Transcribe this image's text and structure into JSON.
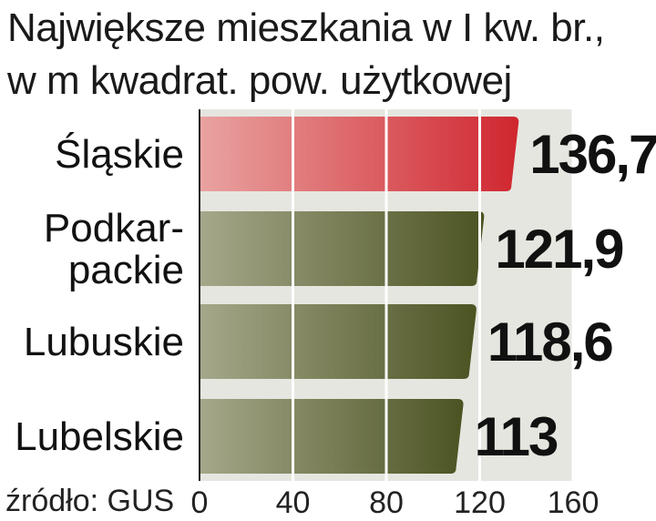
{
  "title_lines": [
    "Największe mieszkania w I kw. br.,",
    "w m kwadrat. pow. użytkowej"
  ],
  "source": "źródło: GUS",
  "colors": {
    "highlight_start": "#e9a3a1",
    "highlight_end": "#d0262f",
    "bar_start": "#a5a88a",
    "bar_end": "#4c5322",
    "plot_bg": "#e6e6e0",
    "gridline": "#ffffff"
  },
  "chart_data": {
    "type": "bar",
    "orientation": "horizontal",
    "title": "Największe mieszkania w I kw. br., w m kwadrat. pow. użytkowej",
    "categories": [
      {
        "lines": [
          "Śląskie"
        ]
      },
      {
        "lines": [
          "Podkar-",
          "packie"
        ]
      },
      {
        "lines": [
          "Lubuskie"
        ]
      },
      {
        "lines": [
          "Lubelskie"
        ]
      }
    ],
    "values": [
      136.7,
      121.9,
      118.6,
      113
    ],
    "value_labels": [
      "136,7",
      "121,9",
      "118,6",
      "113"
    ],
    "highlight_index": 0,
    "xlim": [
      0,
      160
    ],
    "xticks": [
      0,
      40,
      80,
      120,
      160
    ],
    "grid": true
  }
}
